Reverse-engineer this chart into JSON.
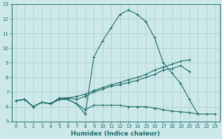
{
  "xlabel": "Humidex (Indice chaleur)",
  "ylabel": "",
  "xlim": [
    -0.5,
    23.5
  ],
  "ylim": [
    5,
    13
  ],
  "xtick_labels": [
    "0",
    "1",
    "2",
    "3",
    "4",
    "5",
    "6",
    "7",
    "8",
    "9",
    "10",
    "11",
    "12",
    "13",
    "14",
    "15",
    "16",
    "17",
    "18",
    "19",
    "20",
    "21",
    "22",
    "23"
  ],
  "xtick_vals": [
    0,
    1,
    2,
    3,
    4,
    5,
    6,
    7,
    8,
    9,
    10,
    11,
    12,
    13,
    14,
    15,
    16,
    17,
    18,
    19,
    20,
    21,
    22,
    23
  ],
  "yticks": [
    5,
    6,
    7,
    8,
    9,
    10,
    11,
    12,
    13
  ],
  "bg_color": "#cde8e8",
  "line_color": "#1a6b6b",
  "grid_color": "#a8cccc",
  "line1_x": [
    0,
    1,
    2,
    3,
    4,
    5,
    6,
    7,
    8,
    9,
    10,
    11,
    12,
    13,
    14,
    15,
    16,
    17,
    18,
    19,
    20,
    21
  ],
  "line1_y": [
    6.4,
    6.5,
    6.0,
    6.3,
    6.2,
    6.5,
    6.5,
    6.2,
    5.5,
    9.4,
    10.5,
    11.4,
    12.3,
    12.6,
    12.3,
    11.8,
    10.7,
    9.0,
    8.3,
    7.6,
    6.5,
    5.5
  ],
  "line2_x": [
    0,
    1,
    2,
    3,
    4,
    5,
    6,
    7,
    8,
    9,
    10,
    11,
    12,
    13,
    14,
    15,
    16,
    17,
    18,
    19,
    20,
    21,
    22,
    23
  ],
  "line2_y": [
    6.4,
    6.5,
    6.0,
    6.3,
    6.2,
    6.5,
    6.5,
    6.2,
    5.8,
    6.1,
    6.1,
    6.1,
    6.1,
    6.0,
    6.0,
    6.0,
    5.9,
    5.8,
    5.7,
    5.65,
    5.6,
    5.5,
    5.5,
    5.5
  ],
  "line3_x": [
    0,
    1,
    2,
    3,
    4,
    5,
    6,
    7,
    8,
    9,
    10,
    11,
    12,
    13,
    14,
    15,
    16,
    17,
    18,
    19,
    20
  ],
  "line3_y": [
    6.4,
    6.5,
    6.0,
    6.3,
    6.2,
    6.6,
    6.6,
    6.5,
    6.7,
    7.0,
    7.2,
    7.4,
    7.5,
    7.65,
    7.8,
    8.0,
    8.2,
    8.5,
    8.6,
    8.8,
    8.4
  ],
  "line4_x": [
    0,
    1,
    2,
    3,
    4,
    5,
    6,
    7,
    8,
    9,
    10,
    11,
    12,
    13,
    14,
    15,
    16,
    17,
    18,
    19,
    20
  ],
  "line4_y": [
    6.4,
    6.5,
    6.0,
    6.3,
    6.2,
    6.5,
    6.6,
    6.7,
    6.85,
    7.1,
    7.3,
    7.5,
    7.65,
    7.85,
    8.0,
    8.2,
    8.5,
    8.7,
    8.9,
    9.1,
    9.2
  ]
}
